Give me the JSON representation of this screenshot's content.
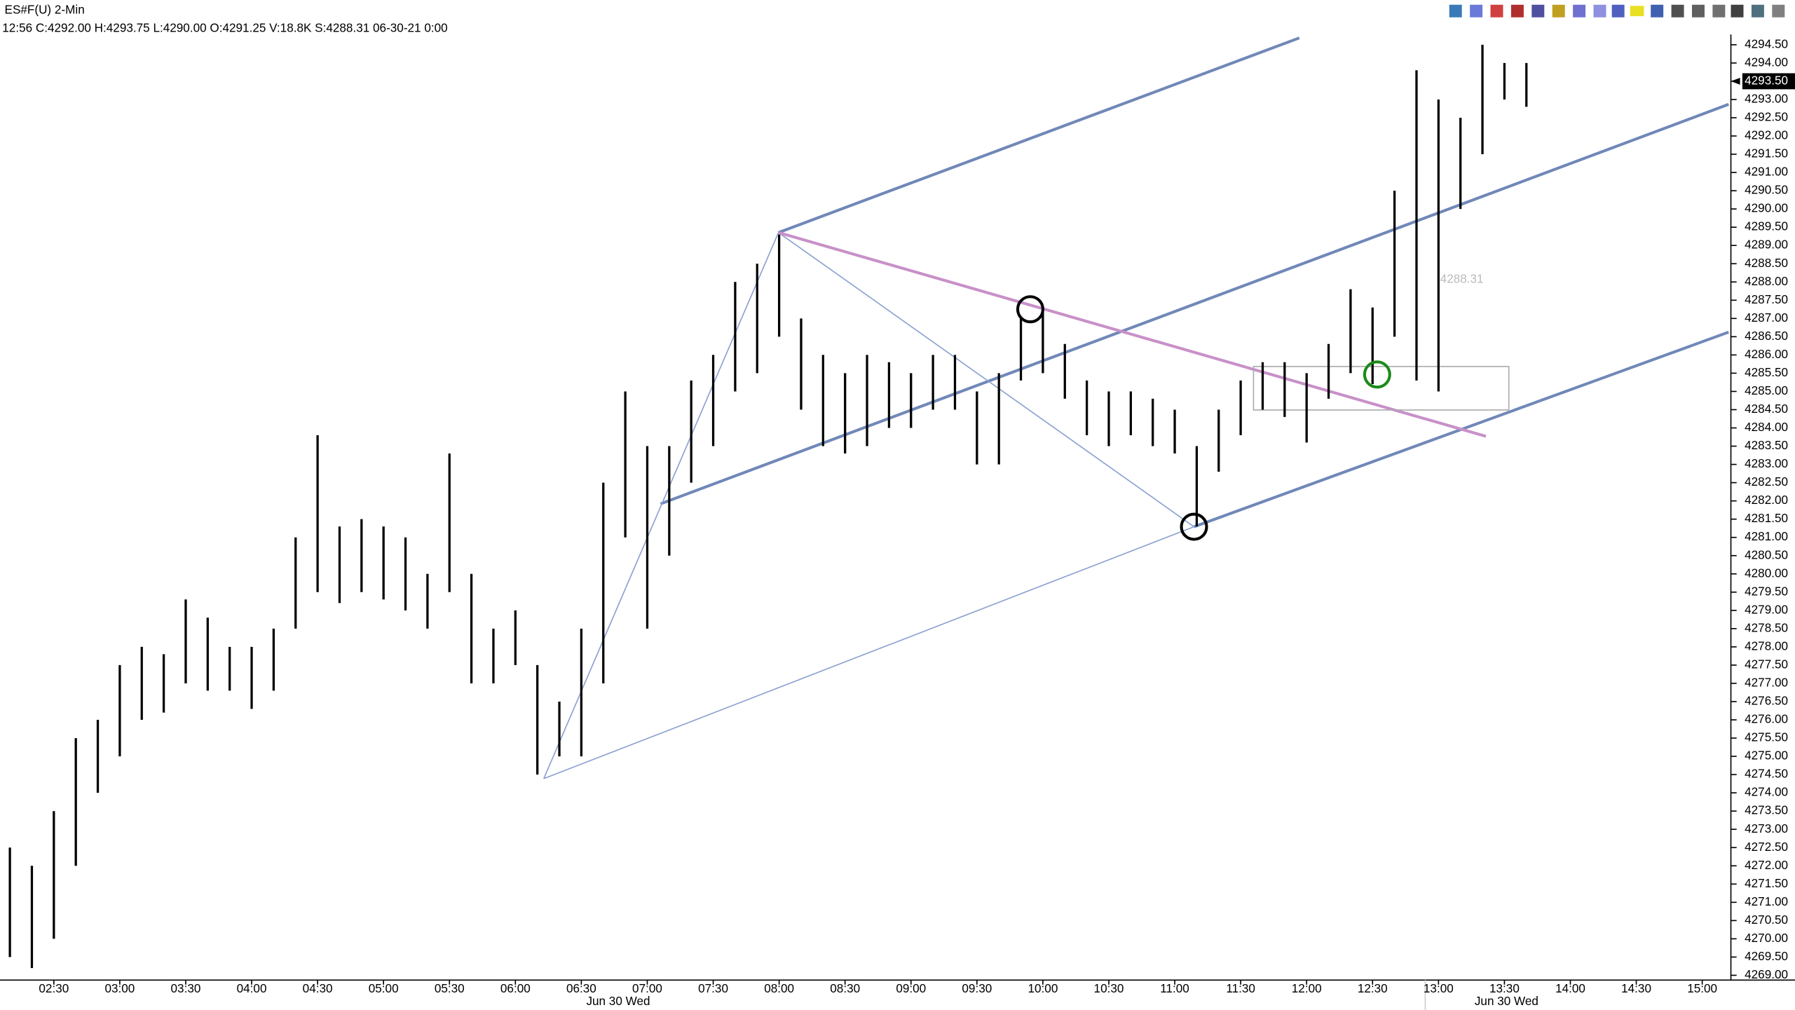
{
  "chart_data": {
    "type": "ohlc",
    "title": "ES#F(U) 2-Min",
    "subtitle": "12:56 C:4292.00 H:4293.75 L:4290.00 O:4291.25 V:18.8K S:4288.31 06-30-21 0:00",
    "annotation": "4288.31",
    "last_price": {
      "value": 4293.5,
      "label": "4293.50"
    },
    "date_labels": [
      "Jun 30 Wed",
      "Jun 30 Wed"
    ],
    "color": "#000000",
    "x": [
      130,
      140,
      150,
      160,
      170,
      180,
      190,
      200,
      210,
      220,
      230,
      240,
      250,
      260,
      270,
      280,
      290,
      300,
      310,
      320,
      330,
      340,
      350,
      360,
      370,
      380,
      390,
      400,
      410,
      420,
      430,
      440,
      450,
      460,
      470,
      480,
      490,
      500,
      510,
      520,
      530,
      540,
      550,
      560,
      570,
      580,
      590,
      600,
      610,
      620,
      630,
      640,
      650,
      660,
      670,
      680,
      690,
      700,
      710,
      720,
      730,
      740,
      750,
      760,
      770,
      780,
      790,
      800,
      810,
      820
    ],
    "high": [
      4272.5,
      4272.0,
      4273.5,
      4275.5,
      4276.0,
      4277.5,
      4278.0,
      4277.8,
      4279.3,
      4278.8,
      4278.0,
      4278.0,
      4278.5,
      4281.0,
      4283.8,
      4281.3,
      4281.5,
      4281.3,
      4281.0,
      4280.0,
      4283.3,
      4280.0,
      4278.5,
      4279.0,
      4277.5,
      4276.5,
      4278.5,
      4282.5,
      4285.0,
      4283.5,
      4283.5,
      4285.3,
      4286.0,
      4288.0,
      4288.5,
      4289.3,
      4287.0,
      4286.0,
      4285.5,
      4286.0,
      4285.8,
      4285.5,
      4286.0,
      4286.0,
      4285.0,
      4285.5,
      4287.0,
      4287.3,
      4286.3,
      4285.3,
      4285.0,
      4285.0,
      4284.8,
      4284.5,
      4283.5,
      4284.5,
      4285.3,
      4285.8,
      4285.8,
      4285.5,
      4286.3,
      4287.8,
      4287.3,
      4290.5,
      4293.8,
      4293.0,
      4292.5,
      4294.5,
      4294.0,
      4294.0
    ],
    "low": [
      4269.5,
      4269.2,
      4270.0,
      4272.0,
      4274.0,
      4275.0,
      4276.0,
      4276.2,
      4277.0,
      4276.8,
      4276.8,
      4276.3,
      4276.8,
      4278.5,
      4279.5,
      4279.2,
      4279.5,
      4279.3,
      4279.0,
      4278.5,
      4279.5,
      4277.0,
      4277.0,
      4277.5,
      4274.5,
      4275.0,
      4275.0,
      4277.0,
      4281.0,
      4278.5,
      4280.5,
      4282.5,
      4283.5,
      4285.0,
      4285.5,
      4286.5,
      4284.5,
      4283.5,
      4283.3,
      4283.5,
      4284.0,
      4284.0,
      4284.5,
      4284.5,
      4283.0,
      4283.0,
      4285.3,
      4285.5,
      4284.8,
      4283.8,
      4283.5,
      4283.8,
      4283.5,
      4283.3,
      4281.3,
      4282.8,
      4283.8,
      4284.5,
      4284.3,
      4283.6,
      4284.8,
      4285.5,
      4285.2,
      4286.5,
      4285.3,
      4285.0,
      4290.0,
      4291.5,
      4293.0,
      4292.8
    ],
    "xlim": [
      125.5,
      912
    ],
    "ylim": [
      4268.9,
      4294.8
    ],
    "xticks": [
      {
        "value": 150,
        "label": "02:30"
      },
      {
        "value": 180,
        "label": "03:00"
      },
      {
        "value": 210,
        "label": "03:30"
      },
      {
        "value": 240,
        "label": "04:00"
      },
      {
        "value": 270,
        "label": "04:30"
      },
      {
        "value": 300,
        "label": "05:00"
      },
      {
        "value": 330,
        "label": "05:30"
      },
      {
        "value": 360,
        "label": "06:00"
      },
      {
        "value": 390,
        "label": "06:30"
      },
      {
        "value": 420,
        "label": "07:00"
      },
      {
        "value": 450,
        "label": "07:30"
      },
      {
        "value": 480,
        "label": "08:00"
      },
      {
        "value": 510,
        "label": "08:30"
      },
      {
        "value": 540,
        "label": "09:00"
      },
      {
        "value": 570,
        "label": "09:30"
      },
      {
        "value": 600,
        "label": "10:00"
      },
      {
        "value": 630,
        "label": "10:30"
      },
      {
        "value": 660,
        "label": "11:00"
      },
      {
        "value": 690,
        "label": "11:30"
      },
      {
        "value": 720,
        "label": "12:00"
      },
      {
        "value": 750,
        "label": "12:30"
      },
      {
        "value": 780,
        "label": "13:00"
      },
      {
        "value": 810,
        "label": "13:30"
      },
      {
        "value": 840,
        "label": "14:00"
      },
      {
        "value": 870,
        "label": "14:30"
      },
      {
        "value": 900,
        "label": "15:00"
      }
    ],
    "yticks": [
      {
        "value": 4269,
        "label": "4269.00"
      },
      {
        "value": 4269.5,
        "label": "4269.50"
      },
      {
        "value": 4270,
        "label": "4270.00"
      },
      {
        "value": 4270.5,
        "label": "4270.50"
      },
      {
        "value": 4271,
        "label": "4271.00"
      },
      {
        "value": 4271.5,
        "label": "4271.50"
      },
      {
        "value": 4272,
        "label": "4272.00"
      },
      {
        "value": 4272.5,
        "label": "4272.50"
      },
      {
        "value": 4273,
        "label": "4273.00"
      },
      {
        "value": 4273.5,
        "label": "4273.50"
      },
      {
        "value": 4274,
        "label": "4274.00"
      },
      {
        "value": 4274.5,
        "label": "4274.50"
      },
      {
        "value": 4275,
        "label": "4275.00"
      },
      {
        "value": 4275.5,
        "label": "4275.50"
      },
      {
        "value": 4276,
        "label": "4276.00"
      },
      {
        "value": 4276.5,
        "label": "4276.50"
      },
      {
        "value": 4277,
        "label": "4277.00"
      },
      {
        "value": 4277.5,
        "label": "4277.50"
      },
      {
        "value": 4278,
        "label": "4278.00"
      },
      {
        "value": 4278.5,
        "label": "4278.50"
      },
      {
        "value": 4279,
        "label": "4279.00"
      },
      {
        "value": 4279.5,
        "label": "4279.50"
      },
      {
        "value": 4280,
        "label": "4280.00"
      },
      {
        "value": 4280.5,
        "label": "4280.50"
      },
      {
        "value": 4281,
        "label": "4281.00"
      },
      {
        "value": 4281.5,
        "label": "4281.50"
      },
      {
        "value": 4282,
        "label": "4282.00"
      },
      {
        "value": 4282.5,
        "label": "4282.50"
      },
      {
        "value": 4283,
        "label": "4283.00"
      },
      {
        "value": 4283.5,
        "label": "4283.50"
      },
      {
        "value": 4284,
        "label": "4284.00"
      },
      {
        "value": 4284.5,
        "label": "4284.50"
      },
      {
        "value": 4285,
        "label": "4285.00"
      },
      {
        "value": 4285.5,
        "label": "4285.50"
      },
      {
        "value": 4286,
        "label": "4286.00"
      },
      {
        "value": 4286.5,
        "label": "4286.50"
      },
      {
        "value": 4287,
        "label": "4287.00"
      },
      {
        "value": 4287.5,
        "label": "4287.50"
      },
      {
        "value": 4288,
        "label": "4288.00"
      },
      {
        "value": 4288.5,
        "label": "4288.50"
      },
      {
        "value": 4289,
        "label": "4289.00"
      },
      {
        "value": 4289.5,
        "label": "4289.50"
      },
      {
        "value": 4290,
        "label": "4290.00"
      },
      {
        "value": 4290.5,
        "label": "4290.50"
      },
      {
        "value": 4291,
        "label": "4291.00"
      },
      {
        "value": 4291.5,
        "label": "4291.50"
      },
      {
        "value": 4292,
        "label": "4292.00"
      },
      {
        "value": 4292.5,
        "label": "4292.50"
      },
      {
        "value": 4293,
        "label": "4293.00"
      },
      {
        "value": 4293.5,
        "label": "4293.50"
      },
      {
        "value": 4294,
        "label": "4294.00"
      },
      {
        "value": 4294.5,
        "label": "4294.50"
      }
    ]
  }
}
